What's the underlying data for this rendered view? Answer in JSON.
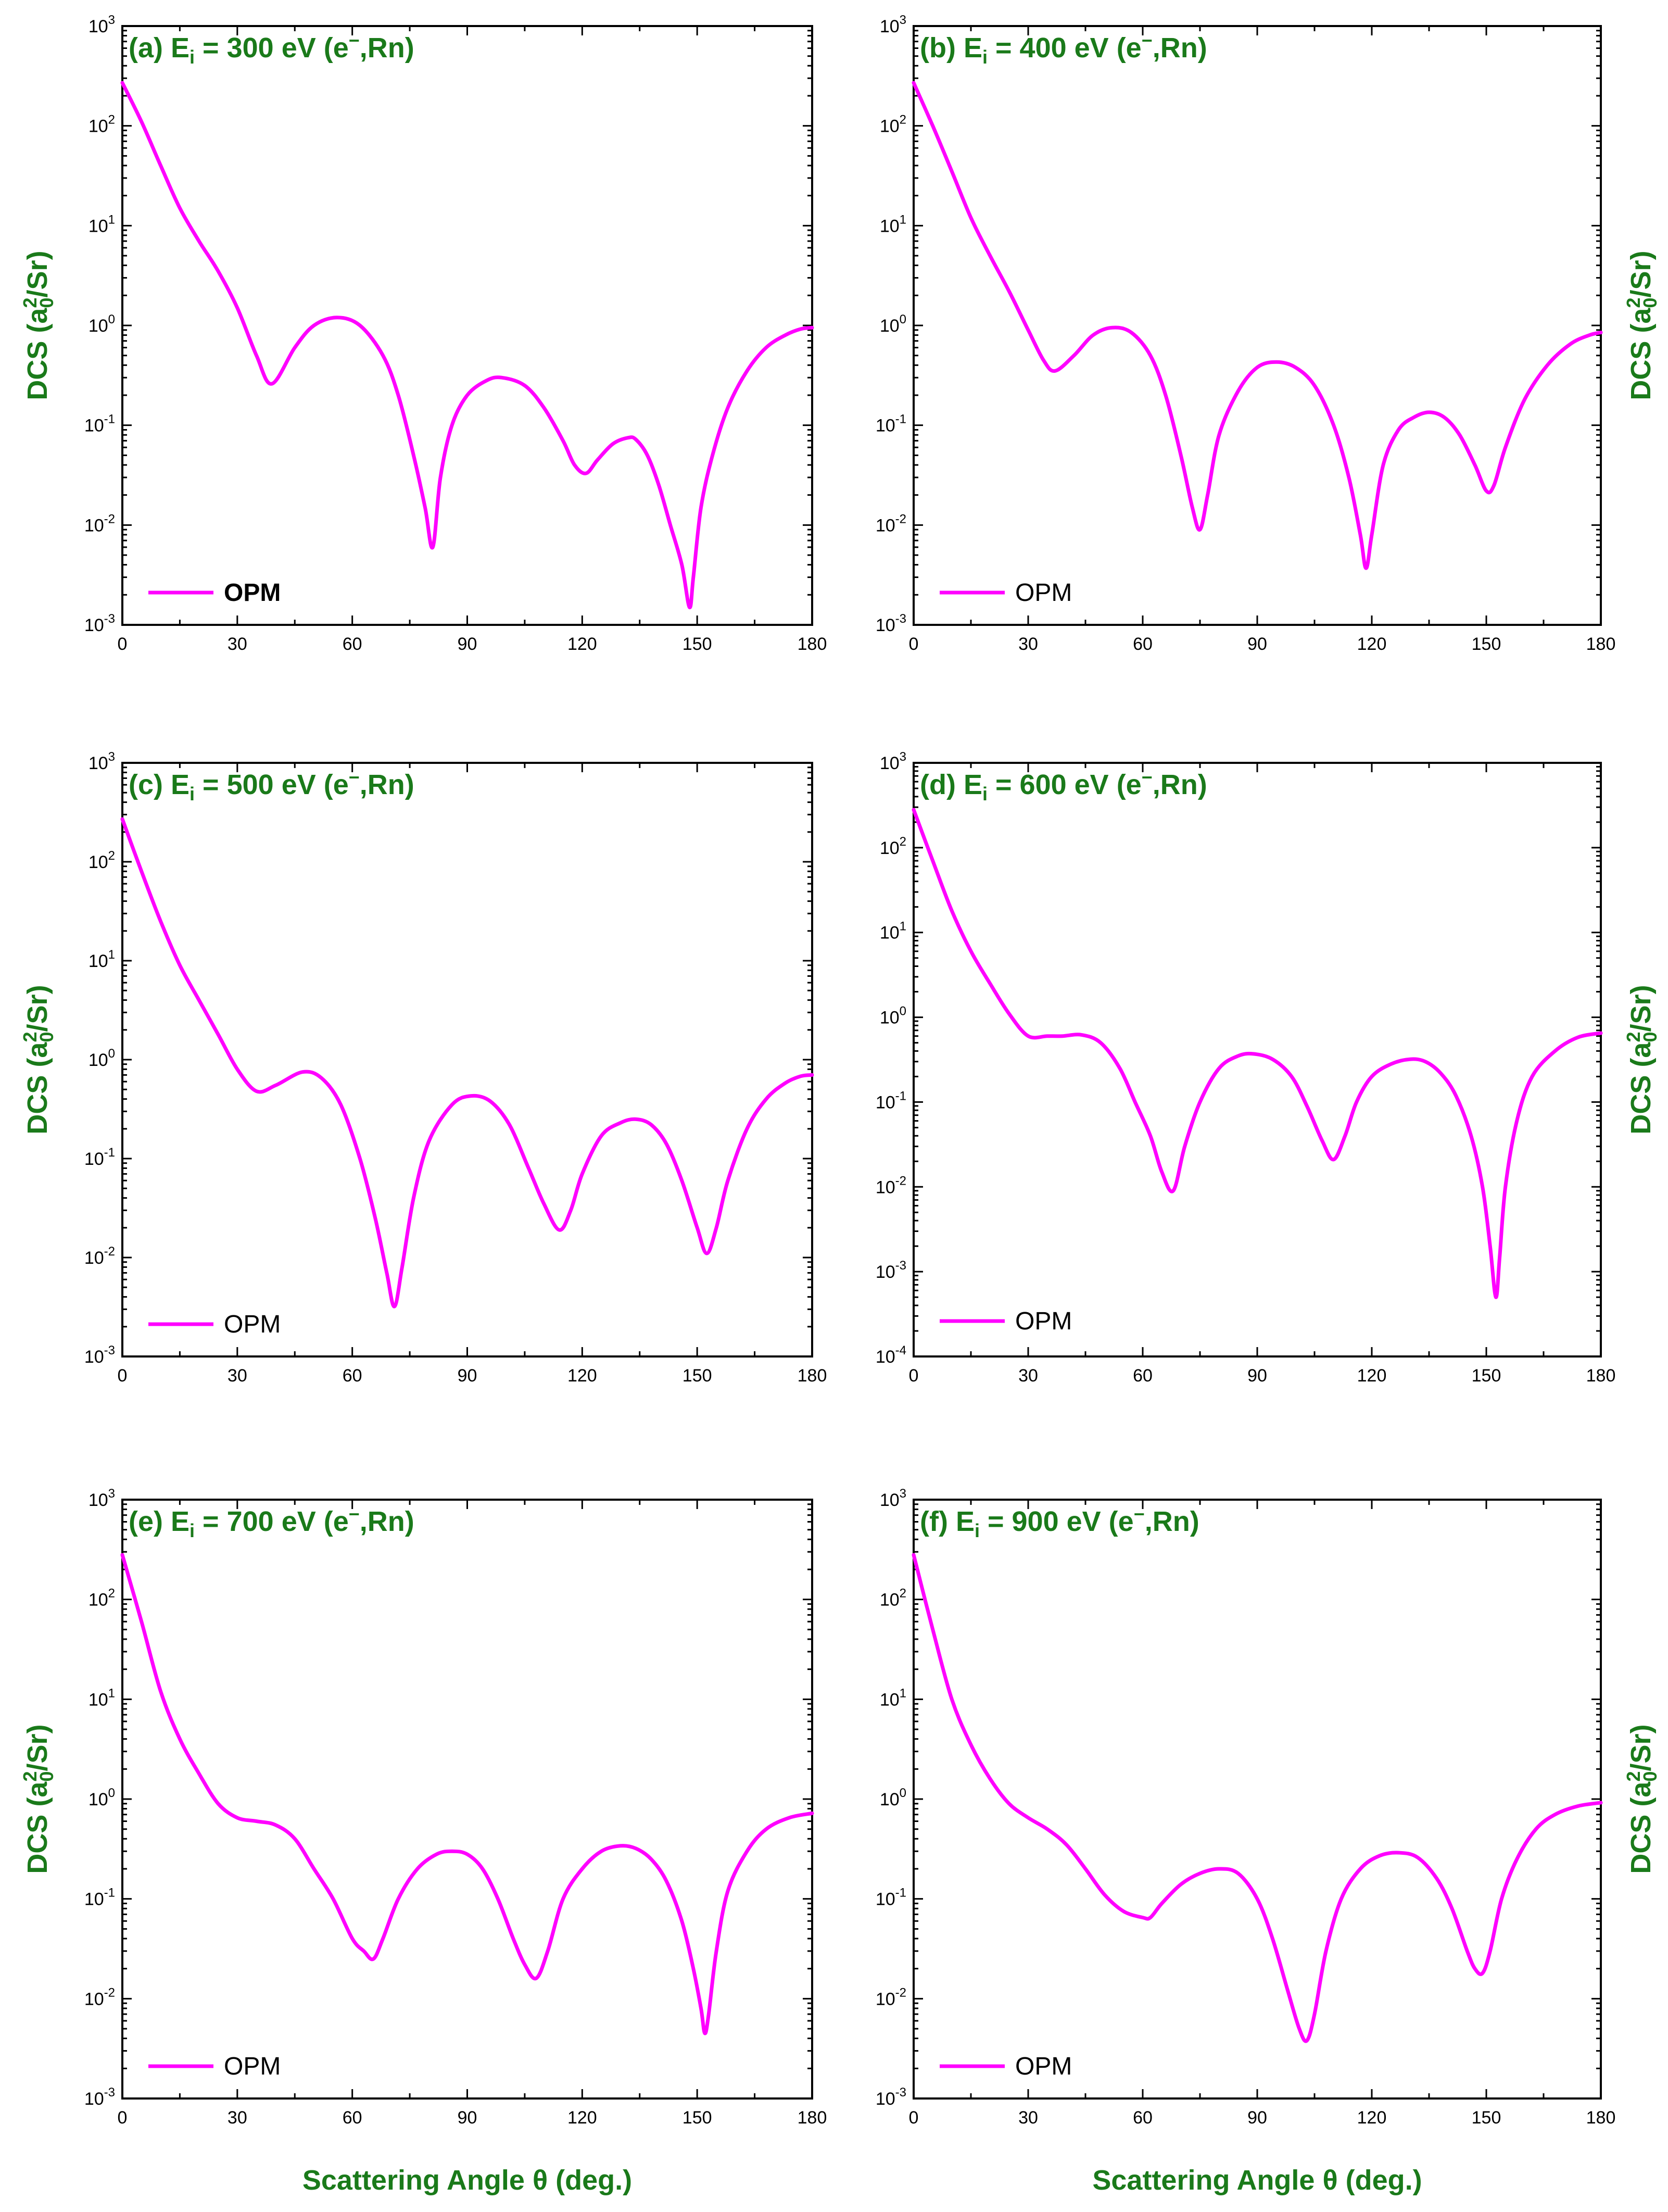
{
  "colors": {
    "curve": "#ff00ff",
    "label": "#1a7a1a",
    "axis": "#000000"
  },
  "xlabel": "Scattering Angle θ (deg.)",
  "chart_data": [
    {
      "type": "line",
      "title": "(a) E_i = 300 eV (e⁻,Rn)",
      "title_parts": {
        "prefix": "(a) E",
        "sub": "i",
        "mid": " = 300 eV (e",
        "sup": "−",
        "suffix": ",Rn)"
      },
      "ylabel": "DCS (a0^2/Sr)",
      "y_scale": "log",
      "xlim": [
        0,
        180
      ],
      "ylim": [
        0.001,
        1000
      ],
      "x_ticks": [
        0,
        30,
        60,
        90,
        120,
        150,
        180
      ],
      "y_tick_exponents": [
        -3,
        -2,
        -1,
        0,
        1,
        2,
        3
      ],
      "legend": {
        "label": "OPM",
        "bold": true,
        "position": "bottom-left"
      },
      "series": [
        {
          "name": "OPM",
          "x": [
            0,
            5,
            10,
            15,
            20,
            25,
            30,
            35,
            39,
            45,
            50,
            56,
            62,
            68,
            72,
            76,
            79,
            81,
            83,
            86,
            90,
            95,
            99,
            105,
            110,
            115,
            118,
            121,
            124,
            128,
            132,
            134,
            137,
            140,
            143,
            146,
            148,
            149,
            151,
            154,
            158,
            163,
            168,
            173,
            177,
            180
          ],
          "y": [
            270,
            110,
            40,
            15,
            7,
            3.5,
            1.5,
            0.5,
            0.26,
            0.6,
            1.0,
            1.2,
            1.0,
            0.5,
            0.2,
            0.05,
            0.015,
            0.006,
            0.03,
            0.1,
            0.2,
            0.28,
            0.3,
            0.25,
            0.15,
            0.07,
            0.04,
            0.033,
            0.045,
            0.065,
            0.075,
            0.072,
            0.05,
            0.025,
            0.01,
            0.004,
            0.0015,
            0.003,
            0.015,
            0.05,
            0.15,
            0.35,
            0.6,
            0.8,
            0.92,
            0.95
          ]
        }
      ]
    },
    {
      "type": "line",
      "title": "(b) E_i = 400 eV (e⁻,Rn)",
      "title_parts": {
        "prefix": "(b) E",
        "sub": "i",
        "mid": " = 400 eV (e",
        "sup": "−",
        "suffix": ",Rn)"
      },
      "ylabel": "DCS (a0^2/Sr)",
      "y_scale": "log",
      "xlim": [
        0,
        180
      ],
      "ylim": [
        0.001,
        1000
      ],
      "x_ticks": [
        0,
        30,
        60,
        90,
        120,
        150,
        180
      ],
      "y_tick_exponents": [
        -3,
        -2,
        -1,
        0,
        1,
        2,
        3
      ],
      "legend": {
        "label": "OPM",
        "bold": false,
        "position": "bottom-left"
      },
      "series": [
        {
          "name": "OPM",
          "x": [
            0,
            5,
            10,
            15,
            20,
            25,
            30,
            34,
            37,
            42,
            47,
            52,
            57,
            62,
            66,
            70,
            73,
            75,
            77,
            80,
            85,
            90,
            95,
            100,
            105,
            110,
            114,
            117,
            118.5,
            120,
            123,
            127,
            131,
            135,
            139,
            143,
            147,
            150,
            152,
            155,
            160,
            166,
            172,
            177,
            180
          ],
          "y": [
            270,
            100,
            35,
            12,
            5,
            2.2,
            0.9,
            0.45,
            0.35,
            0.5,
            0.8,
            0.95,
            0.85,
            0.5,
            0.2,
            0.05,
            0.015,
            0.009,
            0.02,
            0.08,
            0.22,
            0.38,
            0.43,
            0.38,
            0.25,
            0.1,
            0.03,
            0.008,
            0.0037,
            0.008,
            0.04,
            0.09,
            0.12,
            0.135,
            0.12,
            0.08,
            0.04,
            0.022,
            0.025,
            0.06,
            0.18,
            0.4,
            0.65,
            0.8,
            0.85
          ]
        }
      ]
    },
    {
      "type": "line",
      "title": "(c) E_i = 500 eV (e⁻,Rn)",
      "title_parts": {
        "prefix": "(c) E",
        "sub": "i",
        "mid": " = 500 eV (e",
        "sup": "−",
        "suffix": ",Rn)"
      },
      "ylabel": "DCS (a0^2/Sr)",
      "y_scale": "log",
      "xlim": [
        0,
        180
      ],
      "ylim": [
        0.001,
        1000
      ],
      "x_ticks": [
        0,
        30,
        60,
        90,
        120,
        150,
        180
      ],
      "y_tick_exponents": [
        -3,
        -2,
        -1,
        0,
        1,
        2,
        3
      ],
      "legend": {
        "label": "OPM",
        "bold": false,
        "position": "bottom-left"
      },
      "series": [
        {
          "name": "OPM",
          "x": [
            0,
            5,
            10,
            15,
            20,
            25,
            30,
            35,
            40,
            47,
            52,
            57,
            62,
            66,
            69,
            71,
            73,
            76,
            80,
            86,
            91,
            96,
            101,
            106,
            110,
            114,
            117,
            120,
            125,
            130,
            134,
            138,
            142,
            146,
            150,
            152.5,
            155,
            158,
            163,
            168,
            173,
            177,
            180
          ],
          "y": [
            270,
            80,
            25,
            9,
            4,
            1.8,
            0.8,
            0.48,
            0.55,
            0.75,
            0.65,
            0.35,
            0.1,
            0.025,
            0.007,
            0.0032,
            0.008,
            0.04,
            0.15,
            0.35,
            0.43,
            0.38,
            0.22,
            0.08,
            0.035,
            0.019,
            0.03,
            0.07,
            0.17,
            0.23,
            0.25,
            0.22,
            0.14,
            0.06,
            0.02,
            0.011,
            0.02,
            0.06,
            0.2,
            0.4,
            0.58,
            0.68,
            0.7
          ]
        }
      ]
    },
    {
      "type": "line",
      "title": "(d) E_i = 600 eV (e⁻,Rn)",
      "title_parts": {
        "prefix": "(d) E",
        "sub": "i",
        "mid": " = 600 eV (e",
        "sup": "−",
        "suffix": ",Rn)"
      },
      "ylabel": "DCS (a0^2/Sr)",
      "y_scale": "log",
      "xlim": [
        0,
        180
      ],
      "ylim": [
        0.0001,
        1000
      ],
      "x_ticks": [
        0,
        30,
        60,
        90,
        120,
        150,
        180
      ],
      "y_tick_exponents": [
        -4,
        -3,
        -2,
        -1,
        0,
        1,
        2,
        3
      ],
      "legend": {
        "label": "OPM",
        "bold": false,
        "position": "bottom-left"
      },
      "series": [
        {
          "name": "OPM",
          "x": [
            0,
            5,
            10,
            15,
            20,
            25,
            30,
            35,
            39,
            44,
            49,
            54,
            58,
            62,
            65,
            68,
            71,
            75,
            80,
            85,
            89,
            94,
            99,
            103,
            107,
            110,
            113,
            116,
            120,
            125,
            130,
            134,
            138,
            142,
            146,
            149,
            151,
            152.5,
            153.5,
            155,
            158,
            162,
            168,
            174,
            180
          ],
          "y": [
            280,
            70,
            18,
            6,
            2.5,
            1.1,
            0.6,
            0.6,
            0.6,
            0.62,
            0.5,
            0.25,
            0.1,
            0.04,
            0.015,
            0.009,
            0.03,
            0.1,
            0.25,
            0.35,
            0.37,
            0.32,
            0.2,
            0.09,
            0.035,
            0.021,
            0.04,
            0.1,
            0.2,
            0.28,
            0.32,
            0.3,
            0.22,
            0.12,
            0.04,
            0.01,
            0.002,
            0.0005,
            0.0015,
            0.01,
            0.06,
            0.2,
            0.4,
            0.58,
            0.65
          ]
        }
      ]
    },
    {
      "type": "line",
      "title": "(e) E_i = 700 eV (e⁻,Rn)",
      "title_parts": {
        "prefix": "(e) E",
        "sub": "i",
        "mid": " = 700 eV (e",
        "sup": "−",
        "suffix": ",Rn)"
      },
      "ylabel": "DCS (a0^2/Sr)",
      "y_scale": "log",
      "xlim": [
        0,
        180
      ],
      "ylim": [
        0.001,
        1000
      ],
      "x_ticks": [
        0,
        30,
        60,
        90,
        120,
        150,
        180
      ],
      "y_tick_exponents": [
        -3,
        -2,
        -1,
        0,
        1,
        2,
        3
      ],
      "legend": {
        "label": "OPM",
        "bold": false,
        "position": "bottom-left"
      },
      "series": [
        {
          "name": "OPM",
          "x": [
            0,
            5,
            10,
            15,
            20,
            25,
            30,
            35,
            40,
            45,
            50,
            55,
            60,
            63,
            65.5,
            68,
            72,
            77,
            82,
            86,
            90,
            94,
            98,
            102,
            105,
            108,
            111,
            115,
            120,
            125,
            130,
            134,
            138,
            142,
            146,
            149,
            151,
            152,
            153,
            155,
            158,
            163,
            168,
            174,
            180
          ],
          "y": [
            280,
            60,
            12,
            4,
            1.8,
            0.9,
            0.65,
            0.6,
            0.55,
            0.4,
            0.2,
            0.1,
            0.04,
            0.03,
            0.025,
            0.04,
            0.1,
            0.2,
            0.28,
            0.3,
            0.28,
            0.2,
            0.1,
            0.04,
            0.022,
            0.016,
            0.03,
            0.1,
            0.2,
            0.3,
            0.34,
            0.32,
            0.25,
            0.15,
            0.06,
            0.02,
            0.008,
            0.0045,
            0.007,
            0.03,
            0.12,
            0.3,
            0.5,
            0.65,
            0.72
          ]
        }
      ]
    },
    {
      "type": "line",
      "title": "(f) E_i = 900 eV (e⁻,Rn)",
      "title_parts": {
        "prefix": "(f) E",
        "sub": "i",
        "mid": " = 900 eV (e",
        "sup": "−",
        "suffix": ",Rn)"
      },
      "ylabel": "DCS (a0^2/Sr)",
      "y_scale": "log",
      "xlim": [
        0,
        180
      ],
      "ylim": [
        0.001,
        1000
      ],
      "x_ticks": [
        0,
        30,
        60,
        90,
        120,
        150,
        180
      ],
      "y_tick_exponents": [
        -3,
        -2,
        -1,
        0,
        1,
        2,
        3
      ],
      "legend": {
        "label": "OPM",
        "bold": false,
        "position": "bottom-left"
      },
      "series": [
        {
          "name": "OPM",
          "x": [
            0,
            5,
            10,
            15,
            20,
            25,
            30,
            35,
            40,
            45,
            50,
            55,
            60,
            62,
            65,
            70,
            75,
            80,
            85,
            90,
            94,
            98,
            101,
            103,
            105,
            108,
            112,
            117,
            122,
            127,
            132,
            137,
            141,
            145,
            147,
            149,
            151,
            154,
            158,
            163,
            168,
            174,
            180
          ],
          "y": [
            280,
            50,
            10,
            3.5,
            1.6,
            0.9,
            0.65,
            0.5,
            0.35,
            0.2,
            0.11,
            0.075,
            0.065,
            0.065,
            0.09,
            0.14,
            0.18,
            0.2,
            0.18,
            0.1,
            0.04,
            0.012,
            0.005,
            0.0038,
            0.007,
            0.03,
            0.1,
            0.2,
            0.27,
            0.29,
            0.26,
            0.16,
            0.08,
            0.03,
            0.02,
            0.018,
            0.03,
            0.1,
            0.25,
            0.5,
            0.7,
            0.85,
            0.92
          ]
        }
      ]
    }
  ]
}
